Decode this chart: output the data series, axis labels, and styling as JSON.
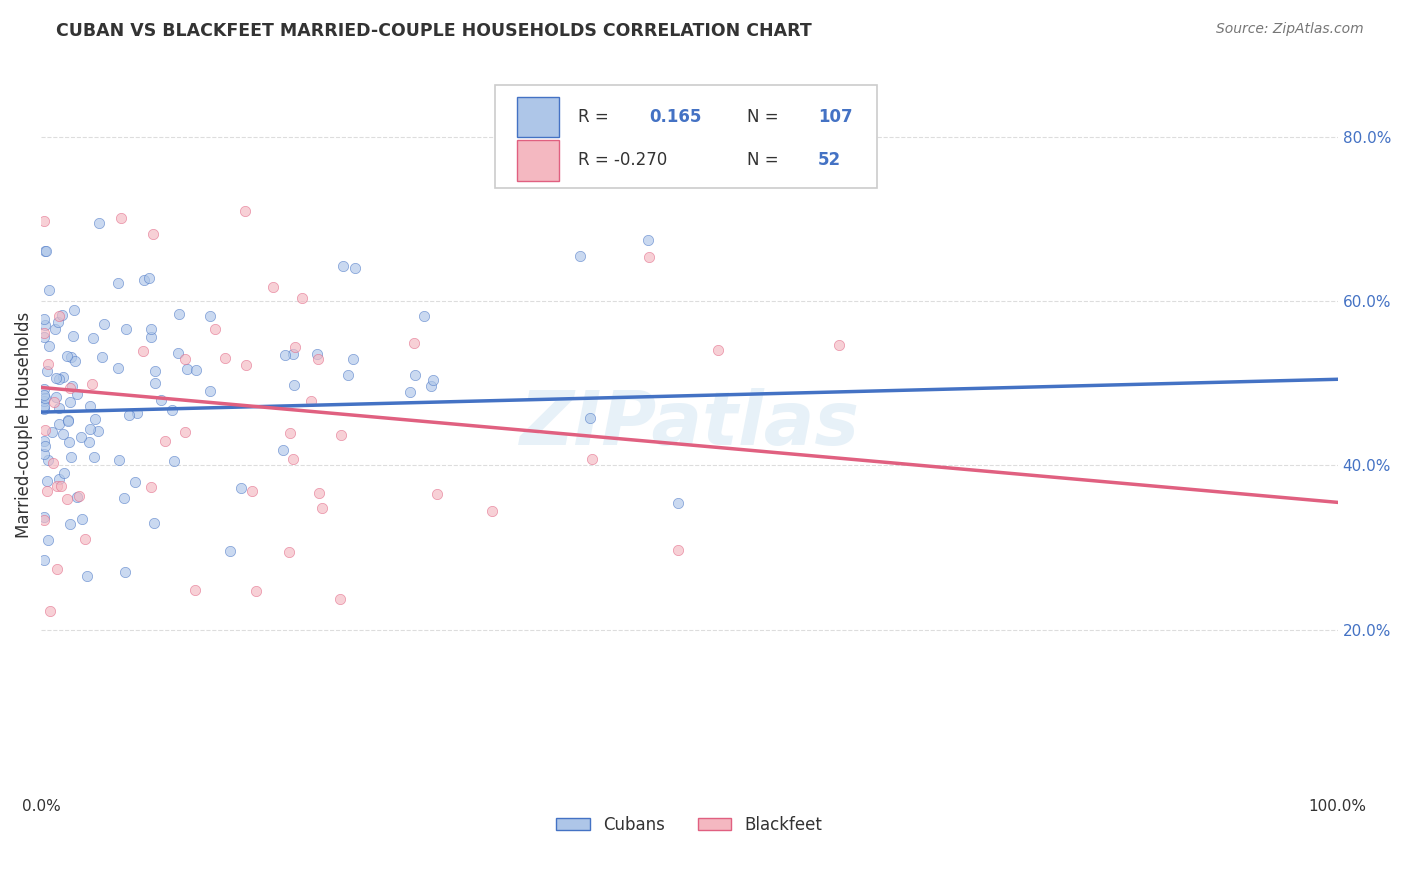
{
  "title": "CUBAN VS BLACKFEET MARRIED-COUPLE HOUSEHOLDS CORRELATION CHART",
  "source": "Source: ZipAtlas.com",
  "ylabel": "Married-couple Households",
  "yaxis_ticks": [
    "20.0%",
    "40.0%",
    "60.0%",
    "80.0%"
  ],
  "yaxis_tick_vals": [
    0.2,
    0.4,
    0.6,
    0.8
  ],
  "xlim": [
    0.0,
    1.0
  ],
  "ylim": [
    0.0,
    0.9
  ],
  "cubans_R": 0.165,
  "cubans_N": 107,
  "blackfeet_R": -0.27,
  "blackfeet_N": 52,
  "cubans_color": "#aec6e8",
  "cubans_line_color": "#4472c4",
  "blackfeet_color": "#f4b8c1",
  "blackfeet_line_color": "#e06080",
  "legend_label_cubans": "Cubans",
  "legend_label_blackfeet": "Blackfeet",
  "watermark": "ZIPatlas",
  "background_color": "#ffffff",
  "grid_color": "#dddddd",
  "title_color": "#333333",
  "source_color": "#777777",
  "axis_label_color": "#4472c4",
  "marker_size": 55,
  "marker_alpha": 0.65,
  "seed": 42,
  "cub_line_y0": 0.465,
  "cub_line_y1": 0.505,
  "blk_line_y0": 0.495,
  "blk_line_y1": 0.355
}
